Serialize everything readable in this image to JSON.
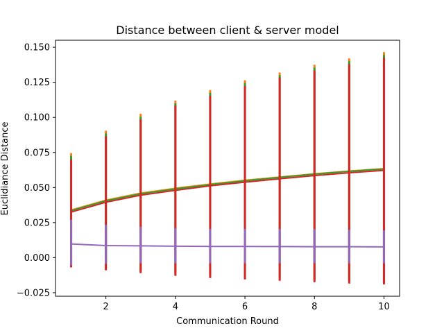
{
  "chart_data": {
    "type": "line",
    "title": "Distance between client & server model",
    "xlabel": "Communication Round",
    "ylabel": "Euclidiance Distance",
    "xlim": [
      0.55,
      10.45
    ],
    "ylim": [
      -0.0275,
      0.155
    ],
    "x_ticks": [
      2,
      4,
      6,
      8,
      10
    ],
    "y_ticks": [
      -0.025,
      0.0,
      0.025,
      0.05,
      0.075,
      0.1,
      0.125,
      0.15
    ],
    "y_tick_labels": [
      "−0.025",
      "0.000",
      "0.025",
      "0.050",
      "0.075",
      "0.100",
      "0.125",
      "0.150"
    ],
    "x": [
      1,
      2,
      3,
      4,
      5,
      6,
      7,
      8,
      9,
      10
    ],
    "grid": false,
    "series": [
      {
        "color": "#ff7f0e",
        "values": [
          0.034,
          0.041,
          0.046,
          0.0495,
          0.0525,
          0.0552,
          0.0575,
          0.0598,
          0.0618,
          0.0635
        ],
        "err_low": [
          -0.006,
          -0.008,
          -0.01,
          -0.012,
          -0.013,
          -0.014,
          -0.015,
          -0.016,
          -0.017,
          -0.018
        ],
        "err_high": [
          0.0745,
          0.0905,
          0.1025,
          0.112,
          0.1195,
          0.1265,
          0.132,
          0.1375,
          0.142,
          0.1465
        ]
      },
      {
        "color": "#2ca02c",
        "values": [
          0.0335,
          0.0405,
          0.0455,
          0.049,
          0.052,
          0.0548,
          0.0572,
          0.0595,
          0.0615,
          0.0632
        ],
        "err_low": [
          -0.0055,
          -0.0075,
          -0.0095,
          -0.0115,
          -0.0125,
          -0.0135,
          -0.0145,
          -0.0155,
          -0.0165,
          -0.0175
        ],
        "err_high": [
          0.0725,
          0.0885,
          0.1005,
          0.11,
          0.1175,
          0.1245,
          0.13,
          0.1355,
          0.14,
          0.1445
        ]
      },
      {
        "color": "#d62728",
        "values": [
          0.0325,
          0.0395,
          0.0445,
          0.048,
          0.0512,
          0.0538,
          0.0562,
          0.0585,
          0.0605,
          0.0622
        ],
        "err_low": [
          -0.007,
          -0.009,
          -0.011,
          -0.013,
          -0.0145,
          -0.0155,
          -0.0165,
          -0.0175,
          -0.0185,
          -0.019
        ],
        "err_high": [
          0.07,
          0.0865,
          0.0985,
          0.1085,
          0.1155,
          0.1225,
          0.1285,
          0.1335,
          0.138,
          0.1425
        ]
      },
      {
        "color": "#9467bd",
        "values": [
          0.0098,
          0.0086,
          0.0084,
          0.0082,
          0.008,
          0.008,
          0.0079,
          0.0078,
          0.0078,
          0.0077
        ],
        "err_low": [
          -0.0055,
          -0.0045,
          -0.004,
          -0.004,
          -0.004,
          -0.004,
          -0.004,
          -0.004,
          -0.004,
          -0.004
        ],
        "err_high": [
          0.027,
          0.0235,
          0.022,
          0.021,
          0.0205,
          0.0205,
          0.0205,
          0.0205,
          0.02,
          0.0195
        ]
      }
    ]
  }
}
